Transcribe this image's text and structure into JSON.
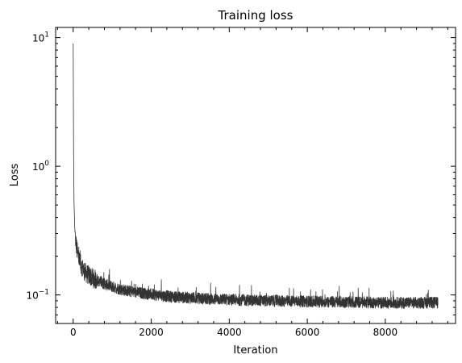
{
  "chart_data": {
    "type": "line",
    "title": "Training loss",
    "xlabel": "Iteration",
    "ylabel": "Loss",
    "xlim": [
      -450,
      9800
    ],
    "ylim": [
      0.06,
      12
    ],
    "yscale": "log",
    "grid": false,
    "line_color": "#333333",
    "x_ticks": [
      0,
      2000,
      4000,
      6000,
      8000
    ],
    "x_tick_labels": [
      "0",
      "2000",
      "4000",
      "6000",
      "8000"
    ],
    "y_ticks": [
      0.1,
      1,
      10
    ],
    "y_tick_labels": [
      {
        "base": "10",
        "exp": "−1"
      },
      {
        "base": "10",
        "exp": "0"
      },
      {
        "base": "10",
        "exp": "1"
      }
    ],
    "series": [
      {
        "x": [
          0,
          10,
          20,
          40,
          60,
          100,
          150,
          200,
          300,
          400,
          500,
          600,
          800,
          1000,
          1200,
          1500,
          2000,
          2500,
          3000,
          3500,
          4000,
          5000,
          6000,
          7000,
          8000,
          9000,
          9350
        ],
        "y": [
          9.0,
          1.3,
          0.55,
          0.33,
          0.27,
          0.22,
          0.19,
          0.17,
          0.15,
          0.142,
          0.135,
          0.13,
          0.122,
          0.116,
          0.111,
          0.106,
          0.101,
          0.097,
          0.095,
          0.093,
          0.092,
          0.09,
          0.089,
          0.088,
          0.087,
          0.087,
          0.087
        ]
      }
    ]
  }
}
